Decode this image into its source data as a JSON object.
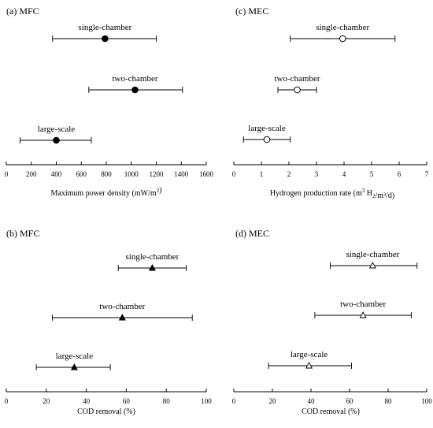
{
  "chart_data": [
    {
      "type": "errorbar",
      "panel_label": "(a) MFC",
      "xlabel_main": "Maximum power density (mW/m",
      "xlabel_sup": "2",
      "xlabel_end": ")",
      "xlim": [
        0,
        1600
      ],
      "xticks": [
        0,
        200,
        400,
        600,
        800,
        1000,
        1200,
        1400,
        1600
      ],
      "tick_labels": [
        "0",
        "200",
        "400",
        "600",
        "800",
        "1000",
        "1200",
        "1400",
        "1600"
      ],
      "marker": "filled-circle",
      "series": [
        {
          "name": "single-chamber",
          "value": 790,
          "low": 370,
          "high": 1200
        },
        {
          "name": "two-chamber",
          "value": 1030,
          "low": 660,
          "high": 1410
        },
        {
          "name": "large-scale",
          "value": 400,
          "low": 110,
          "high": 680
        }
      ]
    },
    {
      "type": "errorbar",
      "panel_label": "(c) MEC",
      "xlabel_main": "Hydrogen production rate (m",
      "xlabel_sup": "3",
      "xlabel_mid": " H",
      "xlabel_sub": "2",
      "xlabel_end": "/m³/d)",
      "xlim": [
        0,
        7
      ],
      "xticks": [
        0,
        1,
        2,
        3,
        4,
        5,
        6,
        7
      ],
      "tick_labels": [
        "0",
        "1",
        "2",
        "3",
        "4",
        "5",
        "6",
        "7"
      ],
      "marker": "open-circle",
      "series": [
        {
          "name": "single-chamber",
          "value": 3.95,
          "low": 2.05,
          "high": 5.85
        },
        {
          "name": "two-chamber",
          "value": 2.3,
          "low": 1.6,
          "high": 3.0
        },
        {
          "name": "large-scale",
          "value": 1.2,
          "low": 0.35,
          "high": 2.05
        }
      ]
    },
    {
      "type": "errorbar",
      "panel_label": "(b) MFC",
      "xlabel_main": "COD removal (%)",
      "xlim": [
        0,
        100
      ],
      "xticks": [
        0,
        20,
        40,
        60,
        80,
        100
      ],
      "tick_labels": [
        "0",
        "20",
        "40",
        "60",
        "80",
        "100"
      ],
      "marker": "filled-triangle",
      "series": [
        {
          "name": "single-chamber",
          "value": 73,
          "low": 56,
          "high": 90
        },
        {
          "name": "two-chamber",
          "value": 58,
          "low": 23,
          "high": 93
        },
        {
          "name": "large-scale",
          "value": 34,
          "low": 15,
          "high": 52
        }
      ]
    },
    {
      "type": "errorbar",
      "panel_label": "(d) MEC",
      "xlabel_main": "COD removal (%)",
      "xlim": [
        0,
        100
      ],
      "xticks": [
        0,
        20,
        40,
        60,
        80,
        100
      ],
      "tick_labels": [
        "0",
        "20",
        "40",
        "60",
        "80",
        "100"
      ],
      "marker": "open-triangle",
      "series": [
        {
          "name": "single-chamber",
          "value": 72,
          "low": 50,
          "high": 95
        },
        {
          "name": "two-chamber",
          "value": 67,
          "low": 42,
          "high": 92
        },
        {
          "name": "large-scale",
          "value": 39,
          "low": 18,
          "high": 61
        }
      ]
    }
  ]
}
